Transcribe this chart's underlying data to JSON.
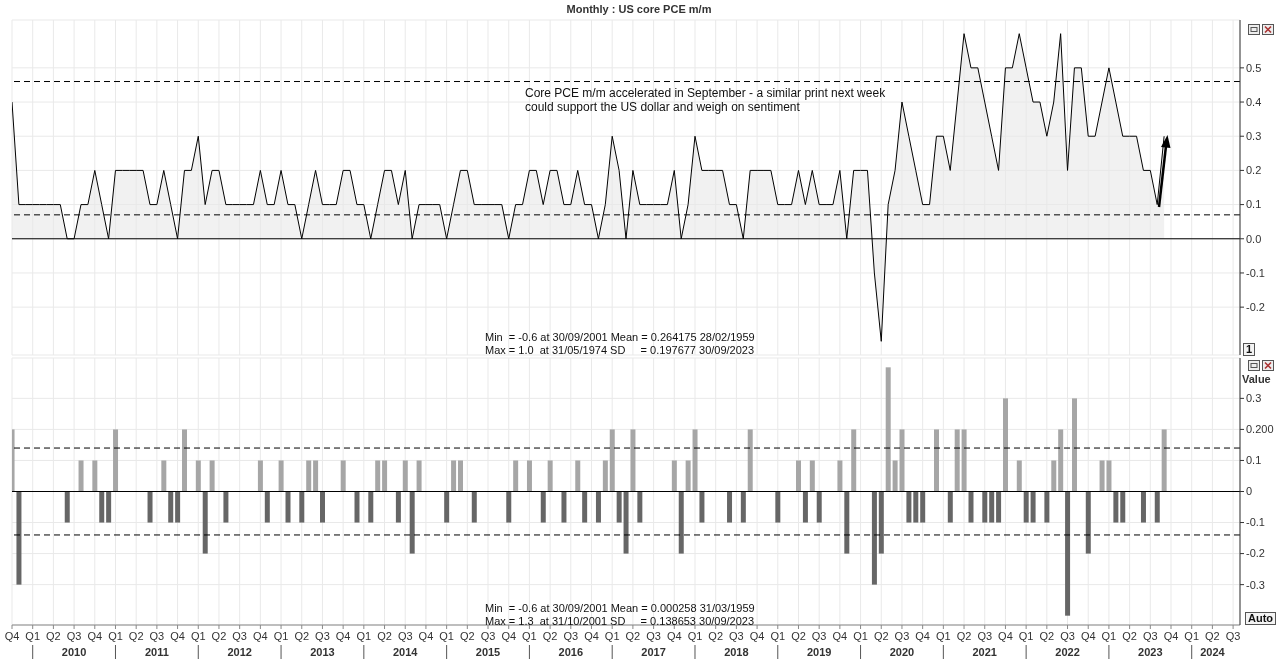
{
  "chart_data": [
    {
      "type": "area",
      "title": "Monthly : US core PCE m/m",
      "color": "#000000",
      "x": [
        "2009-10",
        "2009-11",
        "2009-12",
        "2010-01",
        "2010-02",
        "2010-03",
        "2010-04",
        "2010-05",
        "2010-06",
        "2010-07",
        "2010-08",
        "2010-09",
        "2010-10",
        "2010-11",
        "2010-12",
        "2011-01",
        "2011-02",
        "2011-03",
        "2011-04",
        "2011-05",
        "2011-06",
        "2011-07",
        "2011-08",
        "2011-09",
        "2011-10",
        "2011-11",
        "2011-12",
        "2012-01",
        "2012-02",
        "2012-03",
        "2012-04",
        "2012-05",
        "2012-06",
        "2012-07",
        "2012-08",
        "2012-09",
        "2012-10",
        "2012-11",
        "2012-12",
        "2013-01",
        "2013-02",
        "2013-03",
        "2013-04",
        "2013-05",
        "2013-06",
        "2013-07",
        "2013-08",
        "2013-09",
        "2013-10",
        "2013-11",
        "2013-12",
        "2014-01",
        "2014-02",
        "2014-03",
        "2014-04",
        "2014-05",
        "2014-06",
        "2014-07",
        "2014-08",
        "2014-09",
        "2014-10",
        "2014-11",
        "2014-12",
        "2015-01",
        "2015-02",
        "2015-03",
        "2015-04",
        "2015-05",
        "2015-06",
        "2015-07",
        "2015-08",
        "2015-09",
        "2015-10",
        "2015-11",
        "2015-12",
        "2016-01",
        "2016-02",
        "2016-03",
        "2016-04",
        "2016-05",
        "2016-06",
        "2016-07",
        "2016-08",
        "2016-09",
        "2016-10",
        "2016-11",
        "2016-12",
        "2017-01",
        "2017-02",
        "2017-03",
        "2017-04",
        "2017-05",
        "2017-06",
        "2017-07",
        "2017-08",
        "2017-09",
        "2017-10",
        "2017-11",
        "2017-12",
        "2018-01",
        "2018-02",
        "2018-03",
        "2018-04",
        "2018-05",
        "2018-06",
        "2018-07",
        "2018-08",
        "2018-09",
        "2018-10",
        "2018-11",
        "2018-12",
        "2019-01",
        "2019-02",
        "2019-03",
        "2019-04",
        "2019-05",
        "2019-06",
        "2019-07",
        "2019-08",
        "2019-09",
        "2019-10",
        "2019-11",
        "2019-12",
        "2020-01",
        "2020-02",
        "2020-03",
        "2020-04",
        "2020-05",
        "2020-06",
        "2020-07",
        "2020-08",
        "2020-09",
        "2020-10",
        "2020-11",
        "2020-12",
        "2021-01",
        "2021-02",
        "2021-03",
        "2021-04",
        "2021-05",
        "2021-06",
        "2021-07",
        "2021-08",
        "2021-09",
        "2021-10",
        "2021-11",
        "2021-12",
        "2022-01",
        "2022-02",
        "2022-03",
        "2022-04",
        "2022-05",
        "2022-06",
        "2022-07",
        "2022-08",
        "2022-09",
        "2022-10",
        "2022-11",
        "2022-12",
        "2023-01",
        "2023-02",
        "2023-03",
        "2023-04",
        "2023-05",
        "2023-06",
        "2023-07",
        "2023-08",
        "2023-09"
      ],
      "values": [
        0.4,
        0.1,
        0.1,
        0.1,
        0.1,
        0.1,
        0.1,
        0.1,
        0,
        0,
        0.1,
        0.1,
        0.2,
        0.1,
        0,
        0.2,
        0.2,
        0.2,
        0.2,
        0.2,
        0.1,
        0.1,
        0.2,
        0.1,
        0,
        0.2,
        0.2,
        0.3,
        0.1,
        0.2,
        0.2,
        0.1,
        0.1,
        0.1,
        0.1,
        0.1,
        0.2,
        0.1,
        0.1,
        0.2,
        0.1,
        0.1,
        0,
        0.1,
        0.2,
        0.1,
        0.1,
        0.1,
        0.2,
        0.2,
        0.1,
        0.1,
        0,
        0.1,
        0.2,
        0.2,
        0.1,
        0.2,
        0,
        0.1,
        0.1,
        0.1,
        0.1,
        0,
        0.1,
        0.2,
        0.2,
        0.1,
        0.1,
        0.1,
        0.1,
        0.1,
        0,
        0.1,
        0.1,
        0.2,
        0.2,
        0.1,
        0.2,
        0.2,
        0.1,
        0.1,
        0.2,
        0.1,
        0.1,
        0,
        0.1,
        0.3,
        0.2,
        0,
        0.2,
        0.1,
        0.1,
        0.1,
        0.1,
        0.1,
        0.2,
        0,
        0.1,
        0.3,
        0.2,
        0.2,
        0.2,
        0.2,
        0.1,
        0.1,
        0,
        0.2,
        0.2,
        0.2,
        0.2,
        0.1,
        0.1,
        0.1,
        0.2,
        0.1,
        0.2,
        0.1,
        0.1,
        0.1,
        0.2,
        0,
        0.2,
        0.2,
        0.2,
        -0.1,
        -0.3,
        0.1,
        0.2,
        0.4,
        0.3,
        0.2,
        0.1,
        0.1,
        0.3,
        0.3,
        0.2,
        0.4,
        0.6,
        0.5,
        0.5,
        0.4,
        0.3,
        0.2,
        0.5,
        0.5,
        0.6,
        0.5,
        0.4,
        0.4,
        0.3,
        0.4,
        0.6,
        0.2,
        0.5,
        0.5,
        0.3,
        0.3,
        0.4,
        0.5,
        0.4,
        0.3,
        0.3,
        0.3,
        0.2,
        0.2,
        0.1,
        0.3
      ],
      "xlim": [
        "2009-10",
        "2024-08"
      ],
      "xticks": [
        {
          "value": "2009-10",
          "label": null
        },
        {
          "value": "2010-01",
          "label": null
        },
        {
          "value": "2010-04",
          "label": null
        },
        {
          "value": "2010-07",
          "label": null
        },
        {
          "value": "2010-10",
          "label": null
        },
        {
          "value": "2011-01",
          "label": null
        },
        {
          "value": "2011-04",
          "label": null
        },
        {
          "value": "2011-07",
          "label": null
        },
        {
          "value": "2011-10",
          "label": null
        },
        {
          "value": "2012-01",
          "label": null
        },
        {
          "value": "2012-04",
          "label": null
        },
        {
          "value": "2012-07",
          "label": null
        },
        {
          "value": "2012-10",
          "label": null
        },
        {
          "value": "2013-01",
          "label": null
        },
        {
          "value": "2013-04",
          "label": null
        },
        {
          "value": "2013-07",
          "label": null
        },
        {
          "value": "2013-10",
          "label": null
        },
        {
          "value": "2014-01",
          "label": null
        },
        {
          "value": "2014-04",
          "label": null
        },
        {
          "value": "2014-07",
          "label": null
        },
        {
          "value": "2014-10",
          "label": null
        },
        {
          "value": "2015-01",
          "label": null
        },
        {
          "value": "2015-04",
          "label": null
        },
        {
          "value": "2015-07",
          "label": null
        },
        {
          "value": "2015-10",
          "label": null
        },
        {
          "value": "2016-01",
          "label": null
        },
        {
          "value": "2016-04",
          "label": null
        },
        {
          "value": "2016-07",
          "label": null
        },
        {
          "value": "2016-10",
          "label": null
        },
        {
          "value": "2017-01",
          "label": null
        },
        {
          "value": "2017-04",
          "label": null
        },
        {
          "value": "2017-07",
          "label": null
        },
        {
          "value": "2017-10",
          "label": null
        },
        {
          "value": "2018-01",
          "label": null
        },
        {
          "value": "2018-04",
          "label": null
        },
        {
          "value": "2018-07",
          "label": null
        },
        {
          "value": "2018-10",
          "label": null
        },
        {
          "value": "2019-01",
          "label": null
        },
        {
          "value": "2019-04",
          "label": null
        },
        {
          "value": "2019-07",
          "label": null
        },
        {
          "value": "2019-10",
          "label": null
        },
        {
          "value": "2020-01",
          "label": null
        },
        {
          "value": "2020-04",
          "label": null
        },
        {
          "value": "2020-07",
          "label": null
        },
        {
          "value": "2020-10",
          "label": null
        },
        {
          "value": "2021-01",
          "label": null
        },
        {
          "value": "2021-04",
          "label": null
        },
        {
          "value": "2021-07",
          "label": null
        },
        {
          "value": "2021-10",
          "label": null
        },
        {
          "value": "2022-01",
          "label": null
        },
        {
          "value": "2022-04",
          "label": null
        },
        {
          "value": "2022-07",
          "label": null
        },
        {
          "value": "2022-10",
          "label": null
        },
        {
          "value": "2023-01",
          "label": null
        },
        {
          "value": "2023-04",
          "label": null
        },
        {
          "value": "2023-07",
          "label": null
        },
        {
          "value": "2023-10",
          "label": null
        },
        {
          "value": "2024-01",
          "label": null
        },
        {
          "value": "2024-04",
          "label": null
        },
        {
          "value": "2024-07",
          "label": null
        }
      ],
      "ylim": [
        -0.34,
        0.64
      ],
      "yticks": [
        -0.2,
        -0.1,
        {
          "value": 0,
          "label": "0.0"
        },
        0.1,
        0.2,
        0.3,
        0.4,
        0.5
      ],
      "tick_labels": "y",
      "grid": true,
      "ref_lines": [
        {
          "axis": "y",
          "value": 0,
          "line_style": "solid",
          "color": "#000000"
        },
        {
          "axis": "y",
          "value": 0.46,
          "line_style": "dashed",
          "color": "#000000"
        },
        {
          "axis": "y",
          "value": 0.07,
          "line_style": "dashed",
          "color": "#000000"
        }
      ],
      "annotations": [
        "Core PCE m/m accelerated in September - a similar print next week could support the US dollar and weigh on sentiment",
        "Min  = -0.6 at 30/09/2001 Mean = 0.264175 28/02/1959",
        "Max = 1.0  at 31/05/1974 SD     = 0.197677 30/09/2023",
        "1"
      ]
    },
    {
      "type": "bar",
      "ylabel": "Value",
      "x": [
        "2009-10",
        "2009-11",
        "2009-12",
        "2010-01",
        "2010-02",
        "2010-03",
        "2010-04",
        "2010-05",
        "2010-06",
        "2010-07",
        "2010-08",
        "2010-09",
        "2010-10",
        "2010-11",
        "2010-12",
        "2011-01",
        "2011-02",
        "2011-03",
        "2011-04",
        "2011-05",
        "2011-06",
        "2011-07",
        "2011-08",
        "2011-09",
        "2011-10",
        "2011-11",
        "2011-12",
        "2012-01",
        "2012-02",
        "2012-03",
        "2012-04",
        "2012-05",
        "2012-06",
        "2012-07",
        "2012-08",
        "2012-09",
        "2012-10",
        "2012-11",
        "2012-12",
        "2013-01",
        "2013-02",
        "2013-03",
        "2013-04",
        "2013-05",
        "2013-06",
        "2013-07",
        "2013-08",
        "2013-09",
        "2013-10",
        "2013-11",
        "2013-12",
        "2014-01",
        "2014-02",
        "2014-03",
        "2014-04",
        "2014-05",
        "2014-06",
        "2014-07",
        "2014-08",
        "2014-09",
        "2014-10",
        "2014-11",
        "2014-12",
        "2015-01",
        "2015-02",
        "2015-03",
        "2015-04",
        "2015-05",
        "2015-06",
        "2015-07",
        "2015-08",
        "2015-09",
        "2015-10",
        "2015-11",
        "2015-12",
        "2016-01",
        "2016-02",
        "2016-03",
        "2016-04",
        "2016-05",
        "2016-06",
        "2016-07",
        "2016-08",
        "2016-09",
        "2016-10",
        "2016-11",
        "2016-12",
        "2017-01",
        "2017-02",
        "2017-03",
        "2017-04",
        "2017-05",
        "2017-06",
        "2017-07",
        "2017-08",
        "2017-09",
        "2017-10",
        "2017-11",
        "2017-12",
        "2018-01",
        "2018-02",
        "2018-03",
        "2018-04",
        "2018-05",
        "2018-06",
        "2018-07",
        "2018-08",
        "2018-09",
        "2018-10",
        "2018-11",
        "2018-12",
        "2019-01",
        "2019-02",
        "2019-03",
        "2019-04",
        "2019-05",
        "2019-06",
        "2019-07",
        "2019-08",
        "2019-09",
        "2019-10",
        "2019-11",
        "2019-12",
        "2020-01",
        "2020-02",
        "2020-03",
        "2020-04",
        "2020-05",
        "2020-06",
        "2020-07",
        "2020-08",
        "2020-09",
        "2020-10",
        "2020-11",
        "2020-12",
        "2021-01",
        "2021-02",
        "2021-03",
        "2021-04",
        "2021-05",
        "2021-06",
        "2021-07",
        "2021-08",
        "2021-09",
        "2021-10",
        "2021-11",
        "2021-12",
        "2022-01",
        "2022-02",
        "2022-03",
        "2022-04",
        "2022-05",
        "2022-06",
        "2022-07",
        "2022-08",
        "2022-09",
        "2022-10",
        "2022-11",
        "2022-12",
        "2023-01",
        "2023-02",
        "2023-03",
        "2023-04",
        "2023-05",
        "2023-06",
        "2023-07",
        "2023-08",
        "2023-09"
      ],
      "values": [
        0.2,
        -0.3,
        0,
        0,
        0,
        0,
        0,
        0,
        -0.1,
        0,
        0.1,
        0,
        0.1,
        -0.1,
        -0.1,
        0.2,
        0,
        0,
        0,
        0,
        -0.1,
        0,
        0.1,
        -0.1,
        -0.1,
        0.2,
        0,
        0.1,
        -0.2,
        0.1,
        0,
        -0.1,
        0,
        0,
        0,
        0,
        0.1,
        -0.1,
        0,
        0.1,
        -0.1,
        0,
        -0.1,
        0.1,
        0.1,
        -0.1,
        0,
        0,
        0.1,
        0,
        -0.1,
        0,
        -0.1,
        0.1,
        0.1,
        0,
        -0.1,
        0.1,
        -0.2,
        0.1,
        0,
        0,
        0,
        -0.1,
        0.1,
        0.1,
        0,
        -0.1,
        0,
        0,
        0,
        0,
        -0.1,
        0.1,
        0,
        0.1,
        0,
        -0.1,
        0.1,
        0,
        -0.1,
        0,
        0.1,
        -0.1,
        0,
        -0.1,
        0.1,
        0.2,
        -0.1,
        -0.2,
        0.2,
        -0.1,
        0,
        0,
        0,
        0,
        0.1,
        -0.2,
        0.1,
        0.2,
        -0.1,
        0,
        0,
        0,
        -0.1,
        0,
        -0.1,
        0.2,
        0,
        0,
        0,
        -0.1,
        0,
        0,
        0.1,
        -0.1,
        0.1,
        -0.1,
        0,
        0,
        0.1,
        -0.2,
        0.2,
        0,
        0,
        -0.3,
        -0.2,
        0.4,
        0.1,
        0.2,
        -0.1,
        -0.1,
        -0.1,
        0,
        0.2,
        0,
        -0.1,
        0.2,
        0.2,
        -0.1,
        0,
        -0.1,
        -0.1,
        -0.1,
        0.3,
        0,
        0.1,
        -0.1,
        -0.1,
        0,
        -0.1,
        0.1,
        0.2,
        -0.4,
        0.3,
        0,
        -0.2,
        0,
        0.1,
        0.1,
        -0.1,
        -0.1,
        0,
        0,
        -0.1,
        0,
        -0.1,
        0.2
      ],
      "colors": [
        "#a6a6a6",
        "#666666",
        "#a6a6a6",
        "#a6a6a6",
        "#a6a6a6",
        "#a6a6a6",
        "#a6a6a6",
        "#a6a6a6",
        "#666666",
        "#a6a6a6",
        "#a6a6a6",
        "#a6a6a6",
        "#a6a6a6",
        "#666666",
        "#666666",
        "#a6a6a6",
        "#a6a6a6",
        "#a6a6a6",
        "#a6a6a6",
        "#a6a6a6",
        "#666666",
        "#a6a6a6",
        "#a6a6a6",
        "#666666",
        "#666666",
        "#a6a6a6",
        "#a6a6a6",
        "#a6a6a6",
        "#666666",
        "#a6a6a6",
        "#a6a6a6",
        "#666666",
        "#a6a6a6",
        "#a6a6a6",
        "#a6a6a6",
        "#a6a6a6",
        "#a6a6a6",
        "#666666",
        "#a6a6a6",
        "#a6a6a6",
        "#666666",
        "#a6a6a6",
        "#666666",
        "#a6a6a6",
        "#a6a6a6",
        "#666666",
        "#a6a6a6",
        "#a6a6a6",
        "#a6a6a6",
        "#a6a6a6",
        "#666666",
        "#a6a6a6",
        "#666666",
        "#a6a6a6",
        "#a6a6a6",
        "#a6a6a6",
        "#666666",
        "#a6a6a6",
        "#666666",
        "#a6a6a6",
        "#a6a6a6",
        "#a6a6a6",
        "#a6a6a6",
        "#666666",
        "#a6a6a6",
        "#a6a6a6",
        "#a6a6a6",
        "#666666",
        "#a6a6a6",
        "#a6a6a6",
        "#a6a6a6",
        "#a6a6a6",
        "#666666",
        "#a6a6a6",
        "#a6a6a6",
        "#a6a6a6",
        "#a6a6a6",
        "#666666",
        "#a6a6a6",
        "#a6a6a6",
        "#666666",
        "#a6a6a6",
        "#a6a6a6",
        "#666666",
        "#a6a6a6",
        "#666666",
        "#a6a6a6",
        "#a6a6a6",
        "#666666",
        "#666666",
        "#a6a6a6",
        "#666666",
        "#a6a6a6",
        "#a6a6a6",
        "#a6a6a6",
        "#a6a6a6",
        "#a6a6a6",
        "#666666",
        "#a6a6a6",
        "#a6a6a6",
        "#666666",
        "#a6a6a6",
        "#a6a6a6",
        "#a6a6a6",
        "#666666",
        "#a6a6a6",
        "#666666",
        "#a6a6a6",
        "#a6a6a6",
        "#a6a6a6",
        "#a6a6a6",
        "#666666",
        "#a6a6a6",
        "#a6a6a6",
        "#a6a6a6",
        "#666666",
        "#a6a6a6",
        "#666666",
        "#a6a6a6",
        "#a6a6a6",
        "#a6a6a6",
        "#666666",
        "#a6a6a6",
        "#a6a6a6",
        "#a6a6a6",
        "#666666",
        "#666666",
        "#a6a6a6",
        "#a6a6a6",
        "#a6a6a6",
        "#666666",
        "#666666",
        "#666666",
        "#a6a6a6",
        "#a6a6a6",
        "#a6a6a6",
        "#666666",
        "#a6a6a6",
        "#a6a6a6",
        "#666666",
        "#a6a6a6",
        "#666666",
        "#666666",
        "#666666",
        "#a6a6a6",
        "#a6a6a6",
        "#a6a6a6",
        "#666666",
        "#666666",
        "#a6a6a6",
        "#666666",
        "#a6a6a6",
        "#a6a6a6",
        "#666666",
        "#a6a6a6",
        "#a6a6a6",
        "#666666",
        "#a6a6a6",
        "#a6a6a6",
        "#a6a6a6",
        "#666666",
        "#666666",
        "#a6a6a6",
        "#a6a6a6",
        "#666666",
        "#a6a6a6",
        "#666666",
        "#a6a6a6"
      ],
      "xlim": [
        "2009-10",
        "2024-08"
      ],
      "xticks": [
        {
          "value": "2009-10",
          "label": "Q4"
        },
        {
          "value": "2010-01",
          "label": "Q1"
        },
        {
          "value": "2010-04",
          "label": "Q2"
        },
        {
          "value": "2010-07",
          "label": "Q3\n2010"
        },
        {
          "value": "2010-10",
          "label": "Q4"
        },
        {
          "value": "2011-01",
          "label": "Q1"
        },
        {
          "value": "2011-04",
          "label": "Q2"
        },
        {
          "value": "2011-07",
          "label": "Q3\n2011"
        },
        {
          "value": "2011-10",
          "label": "Q4"
        },
        {
          "value": "2012-01",
          "label": "Q1"
        },
        {
          "value": "2012-04",
          "label": "Q2"
        },
        {
          "value": "2012-07",
          "label": "Q3\n2012"
        },
        {
          "value": "2012-10",
          "label": "Q4"
        },
        {
          "value": "2013-01",
          "label": "Q1"
        },
        {
          "value": "2013-04",
          "label": "Q2"
        },
        {
          "value": "2013-07",
          "label": "Q3\n2013"
        },
        {
          "value": "2013-10",
          "label": "Q4"
        },
        {
          "value": "2014-01",
          "label": "Q1"
        },
        {
          "value": "2014-04",
          "label": "Q2"
        },
        {
          "value": "2014-07",
          "label": "Q3\n2014"
        },
        {
          "value": "2014-10",
          "label": "Q4"
        },
        {
          "value": "2015-01",
          "label": "Q1"
        },
        {
          "value": "2015-04",
          "label": "Q2"
        },
        {
          "value": "2015-07",
          "label": "Q3\n2015"
        },
        {
          "value": "2015-10",
          "label": "Q4"
        },
        {
          "value": "2016-01",
          "label": "Q1"
        },
        {
          "value": "2016-04",
          "label": "Q2"
        },
        {
          "value": "2016-07",
          "label": "Q3\n2016"
        },
        {
          "value": "2016-10",
          "label": "Q4"
        },
        {
          "value": "2017-01",
          "label": "Q1"
        },
        {
          "value": "2017-04",
          "label": "Q2"
        },
        {
          "value": "2017-07",
          "label": "Q3\n2017"
        },
        {
          "value": "2017-10",
          "label": "Q4"
        },
        {
          "value": "2018-01",
          "label": "Q1"
        },
        {
          "value": "2018-04",
          "label": "Q2"
        },
        {
          "value": "2018-07",
          "label": "Q3\n2018"
        },
        {
          "value": "2018-10",
          "label": "Q4"
        },
        {
          "value": "2019-01",
          "label": "Q1"
        },
        {
          "value": "2019-04",
          "label": "Q2"
        },
        {
          "value": "2019-07",
          "label": "Q3\n2019"
        },
        {
          "value": "2019-10",
          "label": "Q4"
        },
        {
          "value": "2020-01",
          "label": "Q1"
        },
        {
          "value": "2020-04",
          "label": "Q2"
        },
        {
          "value": "2020-07",
          "label": "Q3\n2020"
        },
        {
          "value": "2020-10",
          "label": "Q4"
        },
        {
          "value": "2021-01",
          "label": "Q1"
        },
        {
          "value": "2021-04",
          "label": "Q2"
        },
        {
          "value": "2021-07",
          "label": "Q3\n2021"
        },
        {
          "value": "2021-10",
          "label": "Q4"
        },
        {
          "value": "2022-01",
          "label": "Q1"
        },
        {
          "value": "2022-04",
          "label": "Q2"
        },
        {
          "value": "2022-07",
          "label": "Q3\n2022"
        },
        {
          "value": "2022-10",
          "label": "Q4"
        },
        {
          "value": "2023-01",
          "label": "Q1"
        },
        {
          "value": "2023-04",
          "label": "Q2"
        },
        {
          "value": "2023-07",
          "label": "Q3\n2023"
        },
        {
          "value": "2023-10",
          "label": "Q4"
        },
        {
          "value": "2024-01",
          "label": "Q1"
        },
        {
          "value": "2024-04",
          "label": "Q2\n2024"
        },
        {
          "value": "2024-07",
          "label": "Q3"
        }
      ],
      "ylim": [
        -0.43,
        0.43
      ],
      "yticks": [
        -0.3,
        -0.2,
        -0.1,
        0,
        0.1,
        {
          "value": 0.2,
          "label": "0.200"
        },
        0.3
      ],
      "grid": true,
      "ref_lines": [
        {
          "axis": "y",
          "value": 0,
          "line_style": "solid",
          "color": "#000000"
        },
        {
          "axis": "y",
          "value": 0.14,
          "line_style": "dashed",
          "color": "#000000"
        },
        {
          "axis": "y",
          "value": -0.14,
          "line_style": "dashed",
          "color": "#000000"
        }
      ],
      "annotations": [
        "Min  = -0.6 at 30/09/2001 Mean = 0.000258 31/03/1959",
        "Max = 1.3  at 31/10/2001 SD     = 0.138653 30/09/2023",
        "Auto"
      ]
    }
  ]
}
